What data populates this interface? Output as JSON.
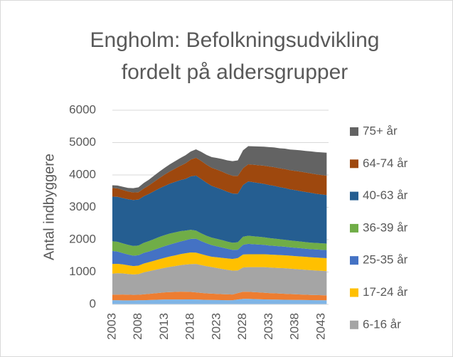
{
  "chart_data": {
    "type": "stacked_area",
    "title": [
      "Engholm: Befolkningsudvikling",
      "fordelt på aldersgrupper"
    ],
    "y_label": "Antal indbyggere",
    "categories": [
      2003,
      null,
      null,
      null,
      null,
      2008,
      null,
      null,
      null,
      null,
      2013,
      null,
      null,
      null,
      null,
      2018,
      null,
      null,
      null,
      null,
      2023,
      null,
      null,
      null,
      null,
      2028,
      null,
      null,
      null,
      null,
      2033,
      null,
      null,
      null,
      null,
      2038,
      null,
      null,
      null,
      null,
      2043,
      null
    ],
    "ylim": [
      0,
      6000
    ],
    "yticks": [
      0,
      1000,
      2000,
      3000,
      4000,
      5000,
      6000
    ],
    "grid": true,
    "legend": "right",
    "series": [
      {
        "color": "#7fb5e6",
        "values": [
          130,
          128,
          125,
          125,
          125,
          128,
          130,
          135,
          140,
          145,
          150,
          150,
          150,
          152,
          155,
          155,
          150,
          145,
          140,
          138,
          135,
          132,
          130,
          130,
          150,
          170,
          170,
          165,
          160,
          155,
          150,
          148,
          145,
          142,
          140,
          138,
          136,
          134,
          132,
          130,
          128,
          126
        ]
      },
      {
        "color": "#ed7d31",
        "values": [
          170,
          175,
          180,
          175,
          170,
          170,
          180,
          190,
          200,
          210,
          220,
          230,
          235,
          240,
          235,
          230,
          220,
          210,
          200,
          195,
          190,
          185,
          180,
          175,
          200,
          220,
          220,
          215,
          210,
          205,
          200,
          195,
          190,
          185,
          180,
          175,
          170,
          165,
          160,
          158,
          155,
          152
        ]
      },
      {
        "name": "6-16 år",
        "color": "#a5a5a5",
        "values": [
          650,
          660,
          650,
          640,
          630,
          640,
          680,
          700,
          720,
          740,
          760,
          780,
          800,
          820,
          840,
          860,
          880,
          860,
          840,
          820,
          800,
          780,
          760,
          740,
          700,
          750,
          760,
          770,
          780,
          790,
          790,
          790,
          790,
          790,
          785,
          780,
          775,
          770,
          765,
          760,
          755,
          750
        ]
      },
      {
        "name": "17-24 år",
        "color": "#ffc000",
        "values": [
          300,
          290,
          280,
          270,
          260,
          260,
          270,
          280,
          290,
          300,
          310,
          320,
          330,
          340,
          350,
          360,
          350,
          340,
          330,
          320,
          330,
          340,
          350,
          360,
          380,
          400,
          400,
          400,
          400,
          400,
          400,
          400,
          400,
          400,
          400,
          400,
          400,
          400,
          400,
          400,
          400,
          400
        ]
      },
      {
        "name": "25-35 år",
        "color": "#4472c4",
        "values": [
          400,
          380,
          350,
          330,
          320,
          320,
          330,
          330,
          340,
          350,
          360,
          370,
          380,
          390,
          400,
          420,
          430,
          400,
          380,
          360,
          340,
          320,
          300,
          280,
          260,
          300,
          320,
          310,
          300,
          290,
          280,
          275,
          270,
          265,
          260,
          258,
          255,
          252,
          250,
          250,
          250,
          250
        ]
      },
      {
        "name": "36-39 år",
        "color": "#70ad47",
        "values": [
          300,
          300,
          300,
          300,
          300,
          300,
          310,
          320,
          330,
          340,
          340,
          340,
          330,
          320,
          300,
          280,
          250,
          240,
          230,
          230,
          230,
          230,
          220,
          220,
          230,
          250,
          250,
          245,
          240,
          235,
          230,
          225,
          220,
          215,
          210,
          208,
          205,
          202,
          200,
          200,
          200,
          200
        ]
      },
      {
        "name": "40-63 år",
        "color": "#255e91",
        "values": [
          1380,
          1390,
          1400,
          1410,
          1420,
          1420,
          1440,
          1460,
          1480,
          1500,
          1520,
          1540,
          1560,
          1580,
          1600,
          1650,
          1700,
          1680,
          1640,
          1600,
          1580,
          1560,
          1540,
          1520,
          1500,
          1600,
          1680,
          1670,
          1660,
          1650,
          1640,
          1630,
          1610,
          1600,
          1580,
          1570,
          1560,
          1550,
          1540,
          1520,
          1510,
          1500
        ]
      },
      {
        "name": "64-74 år",
        "color": "#9e480e",
        "values": [
          270,
          260,
          250,
          240,
          235,
          230,
          240,
          260,
          290,
          320,
          350,
          380,
          410,
          440,
          480,
          520,
          550,
          560,
          560,
          560,
          560,
          555,
          550,
          550,
          550,
          520,
          530,
          540,
          550,
          560,
          570,
          575,
          580,
          585,
          590,
          595,
          600,
          600,
          600,
          600,
          600,
          600
        ]
      },
      {
        "name": "75+ år",
        "color": "#636363",
        "values": [
          80,
          90,
          100,
          110,
          130,
          150,
          170,
          180,
          190,
          200,
          210,
          220,
          230,
          240,
          250,
          250,
          260,
          280,
          300,
          330,
          360,
          390,
          420,
          450,
          480,
          550,
          560,
          570,
          580,
          590,
          600,
          610,
          620,
          630,
          640,
          650,
          660,
          670,
          680,
          690,
          700,
          710
        ]
      }
    ]
  }
}
